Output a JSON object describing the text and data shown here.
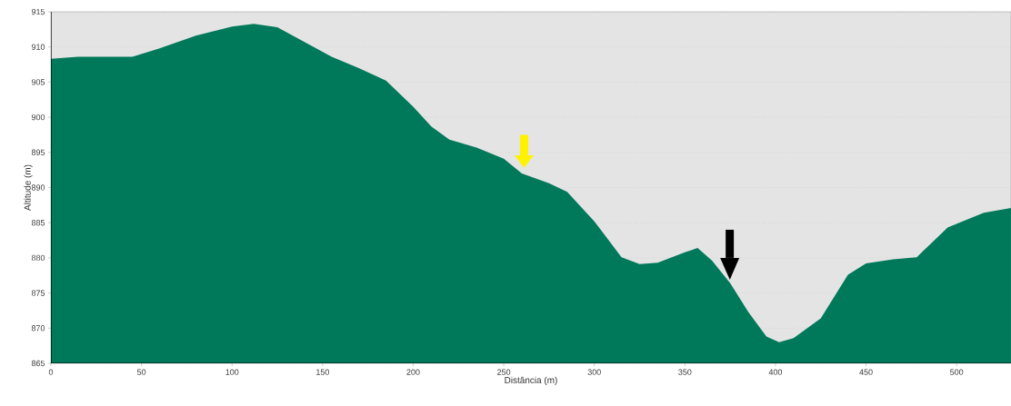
{
  "chart_data": {
    "type": "area",
    "xlabel": "Distância (m)",
    "ylabel": "Altitude (m)",
    "x": [
      0,
      15,
      45,
      60,
      80,
      100,
      112,
      125,
      140,
      155,
      170,
      185,
      200,
      210,
      220,
      235,
      250,
      260,
      275,
      285,
      300,
      315,
      325,
      335,
      350,
      357,
      365,
      375,
      385,
      395,
      402,
      410,
      425,
      440,
      450,
      465,
      478,
      495,
      515,
      530
    ],
    "values": [
      908.3,
      908.6,
      908.6,
      909.8,
      911.6,
      912.9,
      913.3,
      912.8,
      910.7,
      908.6,
      907.0,
      905.2,
      901.5,
      898.7,
      896.8,
      895.7,
      894.1,
      892.0,
      890.6,
      889.4,
      885.2,
      880.1,
      879.1,
      879.3,
      880.8,
      881.4,
      879.6,
      876.4,
      872.3,
      868.8,
      868.0,
      868.6,
      871.4,
      877.6,
      879.2,
      879.8,
      880.1,
      884.3,
      886.4,
      887.1
    ],
    "color": "#00785a",
    "xlim": [
      0,
      530
    ],
    "ylim": [
      865,
      915
    ],
    "xticks": [
      0,
      50,
      100,
      150,
      200,
      250,
      300,
      350,
      400,
      450,
      500
    ],
    "yticks": [
      865,
      870,
      875,
      880,
      885,
      890,
      895,
      900,
      905,
      910,
      915
    ],
    "grid": "y"
  }
}
